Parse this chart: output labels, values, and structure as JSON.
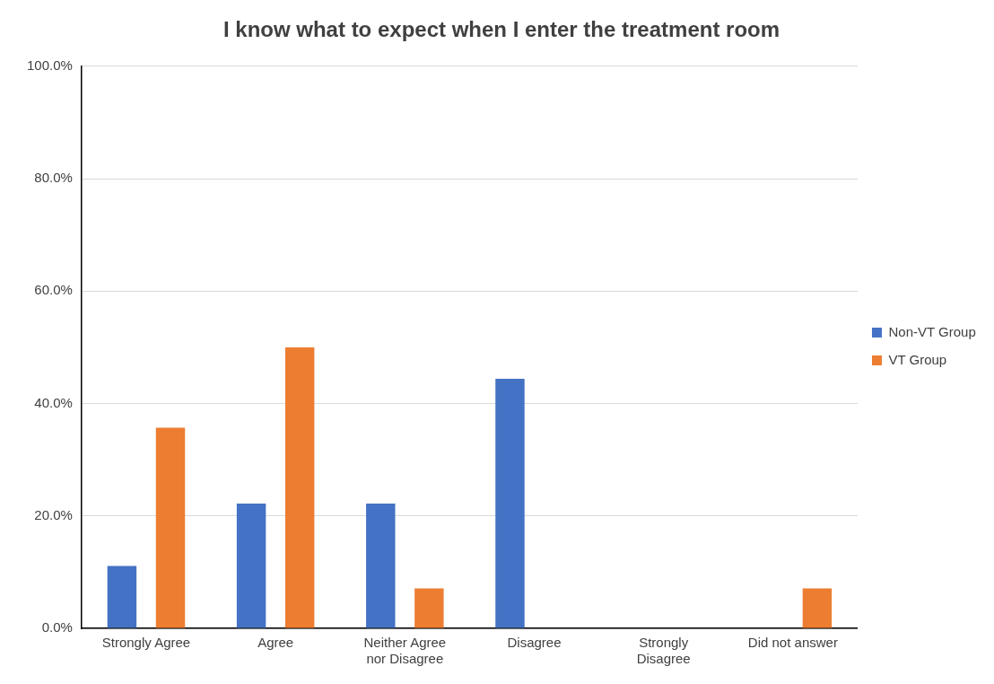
{
  "chart_data": {
    "type": "bar",
    "title": "I know what to expect when I enter the treatment room",
    "categories": [
      "Strongly Agree",
      "Agree",
      "Neither Agree nor Disagree",
      "Disagree",
      "Strongly Disagree",
      "Did not answer"
    ],
    "series": [
      {
        "name": "Non-VT Group",
        "color": "#4472c4",
        "values": [
          11.1,
          22.2,
          22.2,
          44.4,
          0,
          0
        ]
      },
      {
        "name": "VT Group",
        "color": "#ed7d31",
        "values": [
          35.7,
          50.0,
          7.1,
          0,
          0,
          7.1
        ]
      }
    ],
    "ylim": [
      0,
      100
    ],
    "yticks": [
      {
        "value": 0,
        "label": "0.0%"
      },
      {
        "value": 20,
        "label": "20.0%"
      },
      {
        "value": 40,
        "label": "40.0%"
      },
      {
        "value": 60,
        "label": "60.0%"
      },
      {
        "value": 80,
        "label": "80.0%"
      },
      {
        "value": 100,
        "label": "100.0%"
      }
    ],
    "grid": "y",
    "legend": "right"
  }
}
